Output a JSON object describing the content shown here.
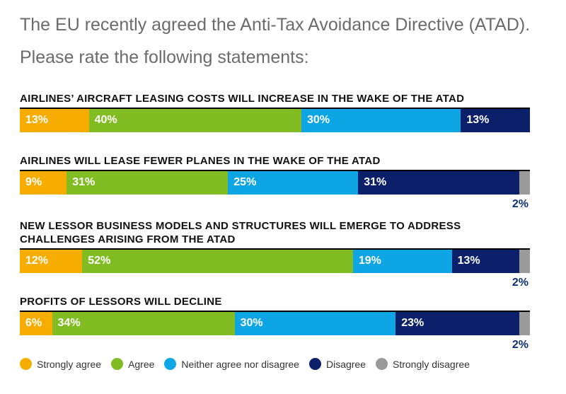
{
  "intro": "The EU recently agreed the Anti-Tax Avoidance Directive (ATAD). Please rate the following statements:",
  "colors": {
    "strongly_agree": "#f7ac00",
    "agree": "#82bc23",
    "neither": "#0ea5e5",
    "disagree": "#0c1f6b",
    "strongly_disagree": "#9a9a9a"
  },
  "legend": [
    {
      "key": "strongly_agree",
      "label": "Strongly agree"
    },
    {
      "key": "agree",
      "label": "Agree"
    },
    {
      "key": "neither",
      "label": "Neither agree nor disagree"
    },
    {
      "key": "disagree",
      "label": "Disagree"
    },
    {
      "key": "strongly_disagree",
      "label": "Strongly disagree"
    }
  ],
  "chart_data": {
    "type": "bar",
    "stacked": true,
    "orientation": "horizontal",
    "categories": [
      "AIRLINES’ AIRCRAFT LEASING COSTS WILL INCREASE IN THE WAKE OF THE ATAD",
      "AIRLINES WILL LEASE FEWER PLANES IN THE WAKE OF THE ATAD",
      "NEW LESSOR BUSINESS MODELS AND STRUCTURES WILL EMERGE TO ADDRESS CHALLENGES ARISING FROM THE ATAD",
      "PROFITS OF LESSORS WILL DECLINE"
    ],
    "series": [
      {
        "name": "Strongly agree",
        "values": [
          13,
          9,
          12,
          6
        ]
      },
      {
        "name": "Agree",
        "values": [
          40,
          31,
          52,
          34
        ]
      },
      {
        "name": "Neither agree nor disagree",
        "values": [
          30,
          25,
          19,
          30
        ]
      },
      {
        "name": "Disagree",
        "values": [
          13,
          31,
          13,
          23
        ]
      },
      {
        "name": "Strongly disagree",
        "values": [
          0,
          2,
          2,
          2
        ]
      }
    ],
    "value_labels": [
      [
        "13%",
        "40%",
        "30%",
        "13%",
        ""
      ],
      [
        "9%",
        "31%",
        "25%",
        "31%",
        "2%"
      ],
      [
        "12%",
        "52%",
        "19%",
        "13%",
        "2%"
      ],
      [
        "6%",
        "34%",
        "30%",
        "23%",
        "2%"
      ]
    ],
    "legend_position": "bottom",
    "grid": false
  }
}
